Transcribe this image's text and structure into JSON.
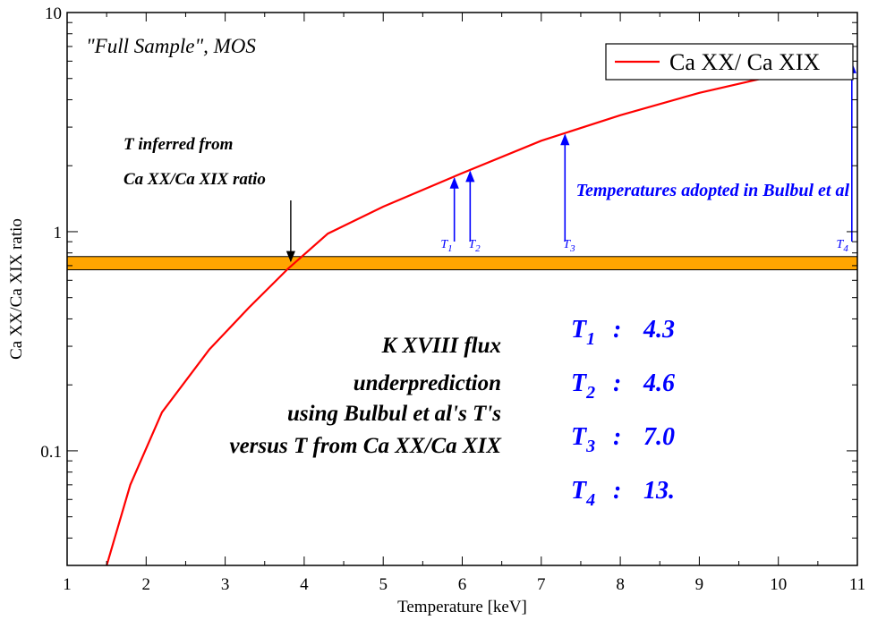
{
  "chart_data": {
    "type": "line",
    "xlabel": "Temperature [keV]",
    "ylabel": "Ca XX/Ca XIX ratio",
    "xlim": [
      1,
      11
    ],
    "ylim": [
      0.03,
      10
    ],
    "y_scale": "log",
    "x_ticks": [
      1,
      2,
      3,
      4,
      5,
      6,
      7,
      8,
      9,
      10,
      11
    ],
    "y_ticks": [
      {
        "value": 0.1,
        "label": "0.1"
      },
      {
        "value": 1,
        "label": "1"
      },
      {
        "value": 10,
        "label": "10"
      }
    ],
    "grid": false,
    "legend_position": "top-right",
    "series": [
      {
        "name": "Ca XX/ Ca XIX",
        "color": "#ff0000",
        "x": [
          1.5,
          1.8,
          2.2,
          2.8,
          3.3,
          3.8,
          4.3,
          5.0,
          6.0,
          7.0,
          8.0,
          9.0,
          10.0,
          10.9
        ],
        "y": [
          0.03,
          0.07,
          0.15,
          0.29,
          0.45,
          0.68,
          0.98,
          1.3,
          1.85,
          2.6,
          3.4,
          4.3,
          5.2,
          6.0
        ]
      }
    ],
    "band": {
      "y_low": 0.67,
      "y_high": 0.77,
      "color": "#ffa500"
    },
    "corner_label": "\"Full Sample\", MOS",
    "inferred_annotation": {
      "lines": [
        "T inferred from",
        "Ca XX/Ca XIX ratio"
      ],
      "x": 3.83,
      "y": 0.72
    },
    "adopted_title": "Temperatures adopted in Bulbul et al",
    "adopted_color": "#0000ff",
    "adopted_temperatures": [
      {
        "name": "T",
        "sub": "1",
        "x": 5.9
      },
      {
        "name": "T",
        "sub": "2",
        "x": 6.1
      },
      {
        "name": "T",
        "sub": "3",
        "x": 7.3
      },
      {
        "name": "T",
        "sub": "4",
        "x": 10.93
      }
    ],
    "flux_note": [
      "K XVIII flux",
      "underprediction",
      "using Bulbul et al's T's",
      "versus T from Ca XX/Ca XIX"
    ],
    "temperature_values": [
      {
        "name": "T",
        "sub": "1",
        "sep": ":",
        "value": "4.3"
      },
      {
        "name": "T",
        "sub": "2",
        "sep": ":",
        "value": "4.6"
      },
      {
        "name": "T",
        "sub": "3",
        "sep": ":",
        "value": "7.0"
      },
      {
        "name": "T",
        "sub": "4",
        "sep": ":",
        "value": "13."
      }
    ]
  }
}
